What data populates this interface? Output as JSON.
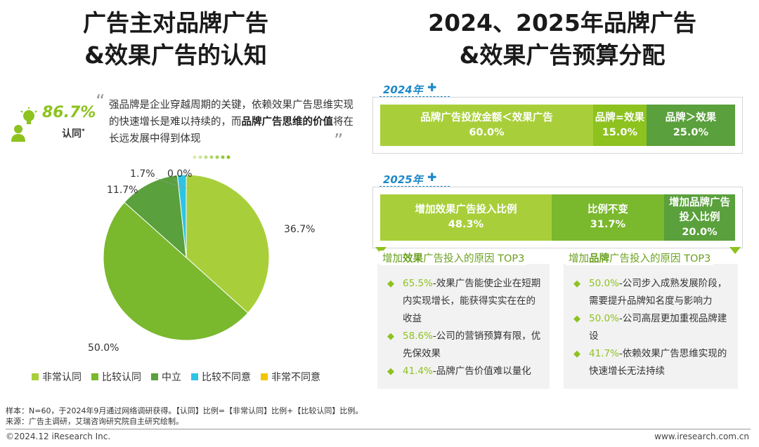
{
  "left": {
    "title_line1": "广告主对品牌广告",
    "title_line2": "&效果广告的认知",
    "stat_value": "86.7%",
    "stat_label": "认同",
    "stat_mark": "*",
    "quote_part1": "强品牌是企业穿越周期的关键，依赖效果广告思维实现的快速增长是难以持续的，而",
    "quote_bold1": "品牌广告思维的价值",
    "quote_part2": "将在长远发展中得到体现",
    "quote_open": "“",
    "quote_close": "”"
  },
  "chart_data": {
    "type": "pie",
    "categories": [
      "非常认同",
      "比较认同",
      "中立",
      "比较不同意",
      "非常不同意"
    ],
    "values": [
      36.7,
      50.0,
      11.7,
      1.7,
      0.0
    ],
    "labels": [
      "36.7%",
      "50.0%",
      "11.7%",
      "1.7%",
      "0.0%"
    ],
    "colors": [
      "#a8cf3a",
      "#7ab82e",
      "#5aa03c",
      "#2ec4e6",
      "#f5c400"
    ],
    "start": "12 o'clock, clockwise",
    "legend_position": "bottom"
  },
  "right": {
    "title_line1": "2024、2025年品牌广告",
    "title_line2": "&效果广告预算分配",
    "year_2024": "2024年",
    "year_2025": "2025年",
    "bar_2024": [
      {
        "label": "品牌广告投放金额＜效果广告",
        "value": "60.0%",
        "share": 60.0,
        "color": "#a8cf3a"
      },
      {
        "label": "品牌=效果",
        "value": "15.0%",
        "share": 15.0,
        "color": "#8dc21f"
      },
      {
        "label": "品牌＞效果",
        "value": "25.0%",
        "share": 25.0,
        "color": "#5aa03c"
      }
    ],
    "bar_2025": [
      {
        "label": "增加效果广告投入比例",
        "value": "48.3%",
        "share": 48.3,
        "color": "#a8cf3a"
      },
      {
        "label": "比例不变",
        "value": "31.7%",
        "share": 31.7,
        "color": "#7ab82e"
      },
      {
        "label": "增加品牌广告投入比例",
        "value": "20.0%",
        "share": 20.0,
        "color": "#5aa03c"
      }
    ],
    "reasons_effect": {
      "head_pre": "增加",
      "head_bold": "效果",
      "head_post": "广告投入的原因 TOP3",
      "items": [
        {
          "pct": "65.5%",
          "text": "-效果广告能使企业在短期内实现增长，能获得实实在在的收益"
        },
        {
          "pct": "58.6%",
          "text": "-公司的营销预算有限，优先保效果"
        },
        {
          "pct": "41.4%",
          "text": "-品牌广告价值难以量化"
        }
      ]
    },
    "reasons_brand": {
      "head_pre": "增加",
      "head_bold": "品牌",
      "head_post": "广告投入的原因 TOP3",
      "items": [
        {
          "pct": "50.0%",
          "text": "-公司步入成熟发展阶段，需要提升品牌知名度与影响力"
        },
        {
          "pct": "50.0%",
          "text": "-公司高层更加重视品牌建设"
        },
        {
          "pct": "41.7%",
          "text": "-依赖效果广告思维实现的快速增长无法持续"
        }
      ]
    }
  },
  "footer": {
    "note1": "样本：N=60，于2024年9月通过网络调研获得。【认同】比例=【非常认同】比例+【比较认同】比例。",
    "note2": "来源：广告主调研，艾瑞咨询研究院自主研究绘制。",
    "copyright": "©2024.12 iResearch Inc.",
    "site": "www.iresearch.com.cn"
  },
  "icons": {
    "person": "person-idea-icon",
    "puzzle": "puzzle-icon",
    "bullet": "diamond-bullet-icon"
  }
}
